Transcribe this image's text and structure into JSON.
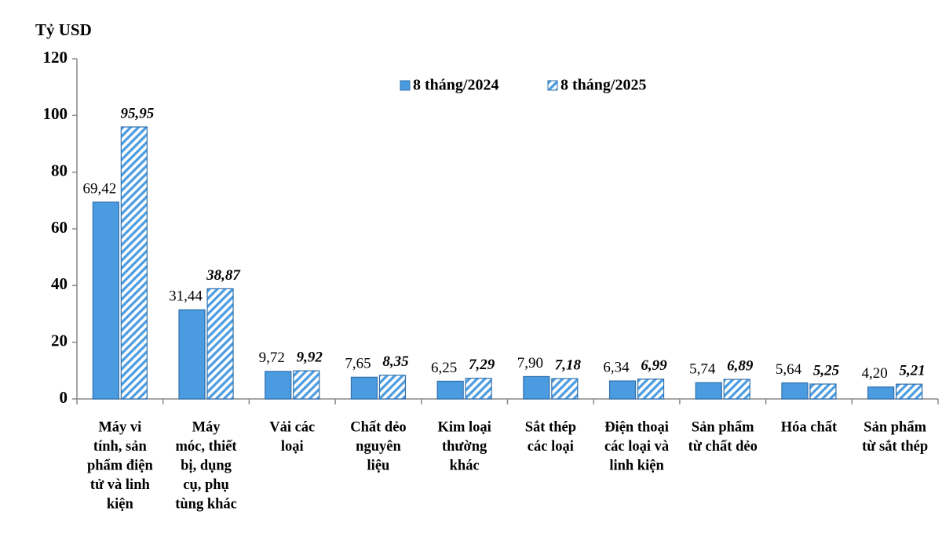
{
  "chart_data": {
    "type": "bar",
    "y_axis_label": "Tỷ USD",
    "categories": [
      [
        "Máy vi",
        "tính, sản",
        "phẩm điện",
        "tử và linh",
        "kiện"
      ],
      [
        "Máy",
        "móc, thiết",
        "bị, dụng",
        "cụ, phụ",
        "tùng khác"
      ],
      [
        "Vải các",
        "loại"
      ],
      [
        "Chất dẻo",
        "nguyên",
        "liệu"
      ],
      [
        "Kim loại",
        "thường",
        "khác"
      ],
      [
        "Sắt thép",
        "các loại"
      ],
      [
        "Điện thoại",
        "các loại và",
        "linh kiện"
      ],
      [
        "Sản phẩm",
        "từ chất dẻo"
      ],
      [
        "Hóa chất"
      ],
      [
        "Sản phẩm",
        "từ sắt thép"
      ]
    ],
    "series": [
      {
        "name": "8 tháng/2024",
        "color": "#4a9be0",
        "pattern": "solid",
        "values": [
          69.42,
          31.44,
          9.72,
          7.65,
          6.25,
          7.9,
          6.34,
          5.74,
          5.64,
          4.2
        ],
        "value_labels": [
          "69,42",
          "31,44",
          "9,72",
          "7,65",
          "6,25",
          "7,90",
          "6,34",
          "5,74",
          "5,64",
          "4,20"
        ]
      },
      {
        "name": "8 tháng/2025",
        "color": "#4a9be0",
        "pattern": "hatch",
        "values": [
          95.95,
          38.87,
          9.92,
          8.35,
          7.29,
          7.18,
          6.99,
          6.89,
          5.25,
          5.21
        ],
        "value_labels": [
          "95,95",
          "38,87",
          "9,92",
          "8,35",
          "7,29",
          "7,18",
          "6,99",
          "6,89",
          "5,25",
          "5,21"
        ]
      }
    ],
    "ylim": [
      0,
      120
    ],
    "yticks": [
      0,
      20,
      40,
      60,
      80,
      100,
      120
    ],
    "grid": false,
    "legend": "top"
  }
}
